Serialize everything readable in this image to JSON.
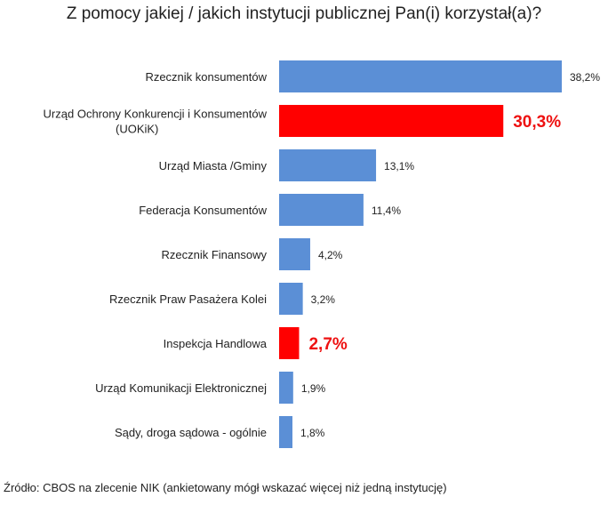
{
  "chart_data": {
    "type": "bar",
    "orientation": "horizontal",
    "title": "Z pomocy jakiej / jakich instytucji publicznej Pan(i) korzystał(a)?",
    "categories": [
      [
        "Rzecznik konsumentów"
      ],
      [
        "Urząd Ochrony Konkurencji i Konsumentów",
        "(UOKiK)"
      ],
      [
        "Urząd Miasta /Gminy"
      ],
      [
        "Federacja Konsumentów"
      ],
      [
        "Rzecznik Finansowy"
      ],
      [
        "Rzecznik Praw Pasażera Kolei"
      ],
      [
        "Inspekcja Handlowa"
      ],
      [
        "Urząd Komunikacji Elektronicznej"
      ],
      [
        "Sądy, droga sądowa - ogólnie"
      ]
    ],
    "values": [
      38.2,
      30.3,
      13.1,
      11.4,
      4.2,
      3.2,
      2.7,
      1.9,
      1.8
    ],
    "value_labels": [
      "38,2%",
      "30,3%",
      "13,1%",
      "11,4%",
      "4,2%",
      "3,2%",
      "2,7%",
      "1,9%",
      "1,8%"
    ],
    "highlighted": [
      false,
      true,
      false,
      false,
      false,
      false,
      true,
      false,
      false
    ],
    "unit": "%",
    "xlim": [
      0,
      38.2
    ],
    "grid": false,
    "legend": "none",
    "colors": {
      "bar": "#5b8fd6",
      "highlight": "#ff0000",
      "highlight_text": "#ee1111"
    }
  },
  "source_note": "Źródło: CBOS na zlecenie NIK (ankietowany mógł wskazać więcej niż jedną instytucję)"
}
